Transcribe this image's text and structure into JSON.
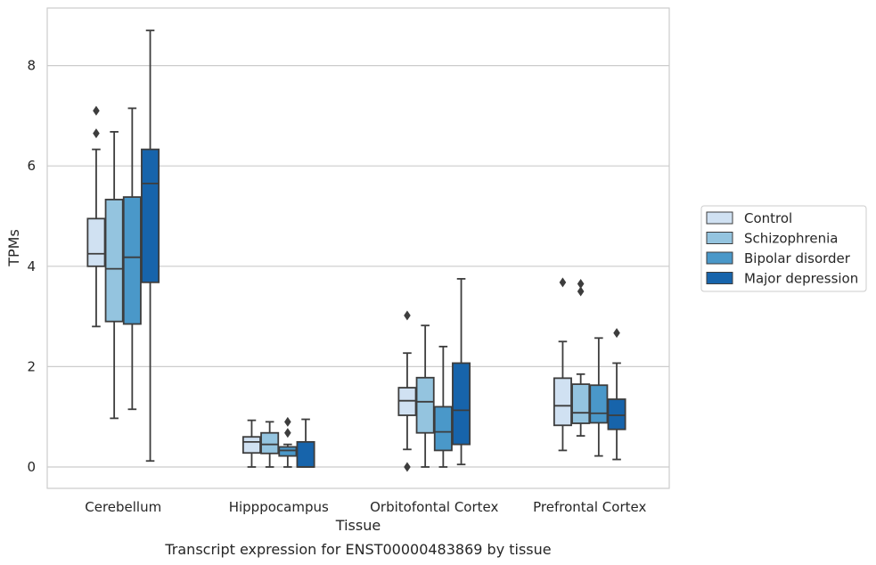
{
  "chart_data": {
    "type": "box",
    "caption": "Transcript expression for ENST00000483869 by tissue",
    "xlabel": "Tissue",
    "ylabel": "TPMs",
    "ylim": [
      -0.42,
      9.25
    ],
    "yticks": [
      0,
      2,
      4,
      6,
      8
    ],
    "grid": "horizontal",
    "legend_position": "right",
    "categories": [
      "Cerebellum",
      "Hipppocampus",
      "Orbitofontal Cortex",
      "Prefrontal Cortex"
    ],
    "series": [
      {
        "name": "Control",
        "color": "#d0e1f2",
        "boxes": [
          {
            "whisker_low": 2.8,
            "q1": 4.0,
            "median": 4.25,
            "q3": 4.95,
            "whisker_high": 6.33,
            "outliers": [
              7.1,
              6.65
            ]
          },
          {
            "whisker_low": 0.0,
            "q1": 0.28,
            "median": 0.5,
            "q3": 0.6,
            "whisker_high": 0.93,
            "outliers": []
          },
          {
            "whisker_low": 0.35,
            "q1": 1.03,
            "median": 1.32,
            "q3": 1.58,
            "whisker_high": 2.27,
            "outliers": [
              3.02,
              0.0
            ]
          },
          {
            "whisker_low": 0.33,
            "q1": 0.83,
            "median": 1.22,
            "q3": 1.77,
            "whisker_high": 2.5,
            "outliers": [
              3.68
            ]
          }
        ]
      },
      {
        "name": "Schizophrenia",
        "color": "#94c4df",
        "boxes": [
          {
            "whisker_low": 0.97,
            "q1": 2.9,
            "median": 3.95,
            "q3": 5.33,
            "whisker_high": 6.68,
            "outliers": []
          },
          {
            "whisker_low": 0.0,
            "q1": 0.27,
            "median": 0.45,
            "q3": 0.68,
            "whisker_high": 0.9,
            "outliers": []
          },
          {
            "whisker_low": 0.0,
            "q1": 0.68,
            "median": 1.3,
            "q3": 1.78,
            "whisker_high": 2.82,
            "outliers": []
          },
          {
            "whisker_low": 0.62,
            "q1": 0.87,
            "median": 1.08,
            "q3": 1.65,
            "whisker_high": 1.85,
            "outliers": [
              3.65,
              3.5
            ]
          }
        ]
      },
      {
        "name": "Bipolar disorder",
        "color": "#4a98c9",
        "boxes": [
          {
            "whisker_low": 1.15,
            "q1": 2.85,
            "median": 4.18,
            "q3": 5.38,
            "whisker_high": 7.15,
            "outliers": []
          },
          {
            "whisker_low": 0.0,
            "q1": 0.22,
            "median": 0.33,
            "q3": 0.4,
            "whisker_high": 0.45,
            "outliers": [
              0.9,
              0.68
            ]
          },
          {
            "whisker_low": 0.0,
            "q1": 0.33,
            "median": 0.7,
            "q3": 1.2,
            "whisker_high": 2.4,
            "outliers": []
          },
          {
            "whisker_low": 0.22,
            "q1": 0.88,
            "median": 1.07,
            "q3": 1.63,
            "whisker_high": 2.57,
            "outliers": []
          }
        ]
      },
      {
        "name": "Major depression",
        "color": "#1764ab",
        "boxes": [
          {
            "whisker_low": 0.12,
            "q1": 3.68,
            "median": 5.65,
            "q3": 6.33,
            "whisker_high": 8.7,
            "outliers": []
          },
          {
            "whisker_low": 0.0,
            "q1": 0.0,
            "median": 0.0,
            "q3": 0.5,
            "whisker_high": 0.95,
            "outliers": []
          },
          {
            "whisker_low": 0.05,
            "q1": 0.45,
            "median": 1.13,
            "q3": 2.07,
            "whisker_high": 3.75,
            "outliers": []
          },
          {
            "whisker_low": 0.15,
            "q1": 0.75,
            "median": 1.03,
            "q3": 1.35,
            "whisker_high": 2.07,
            "outliers": [
              2.67
            ]
          }
        ]
      }
    ]
  }
}
